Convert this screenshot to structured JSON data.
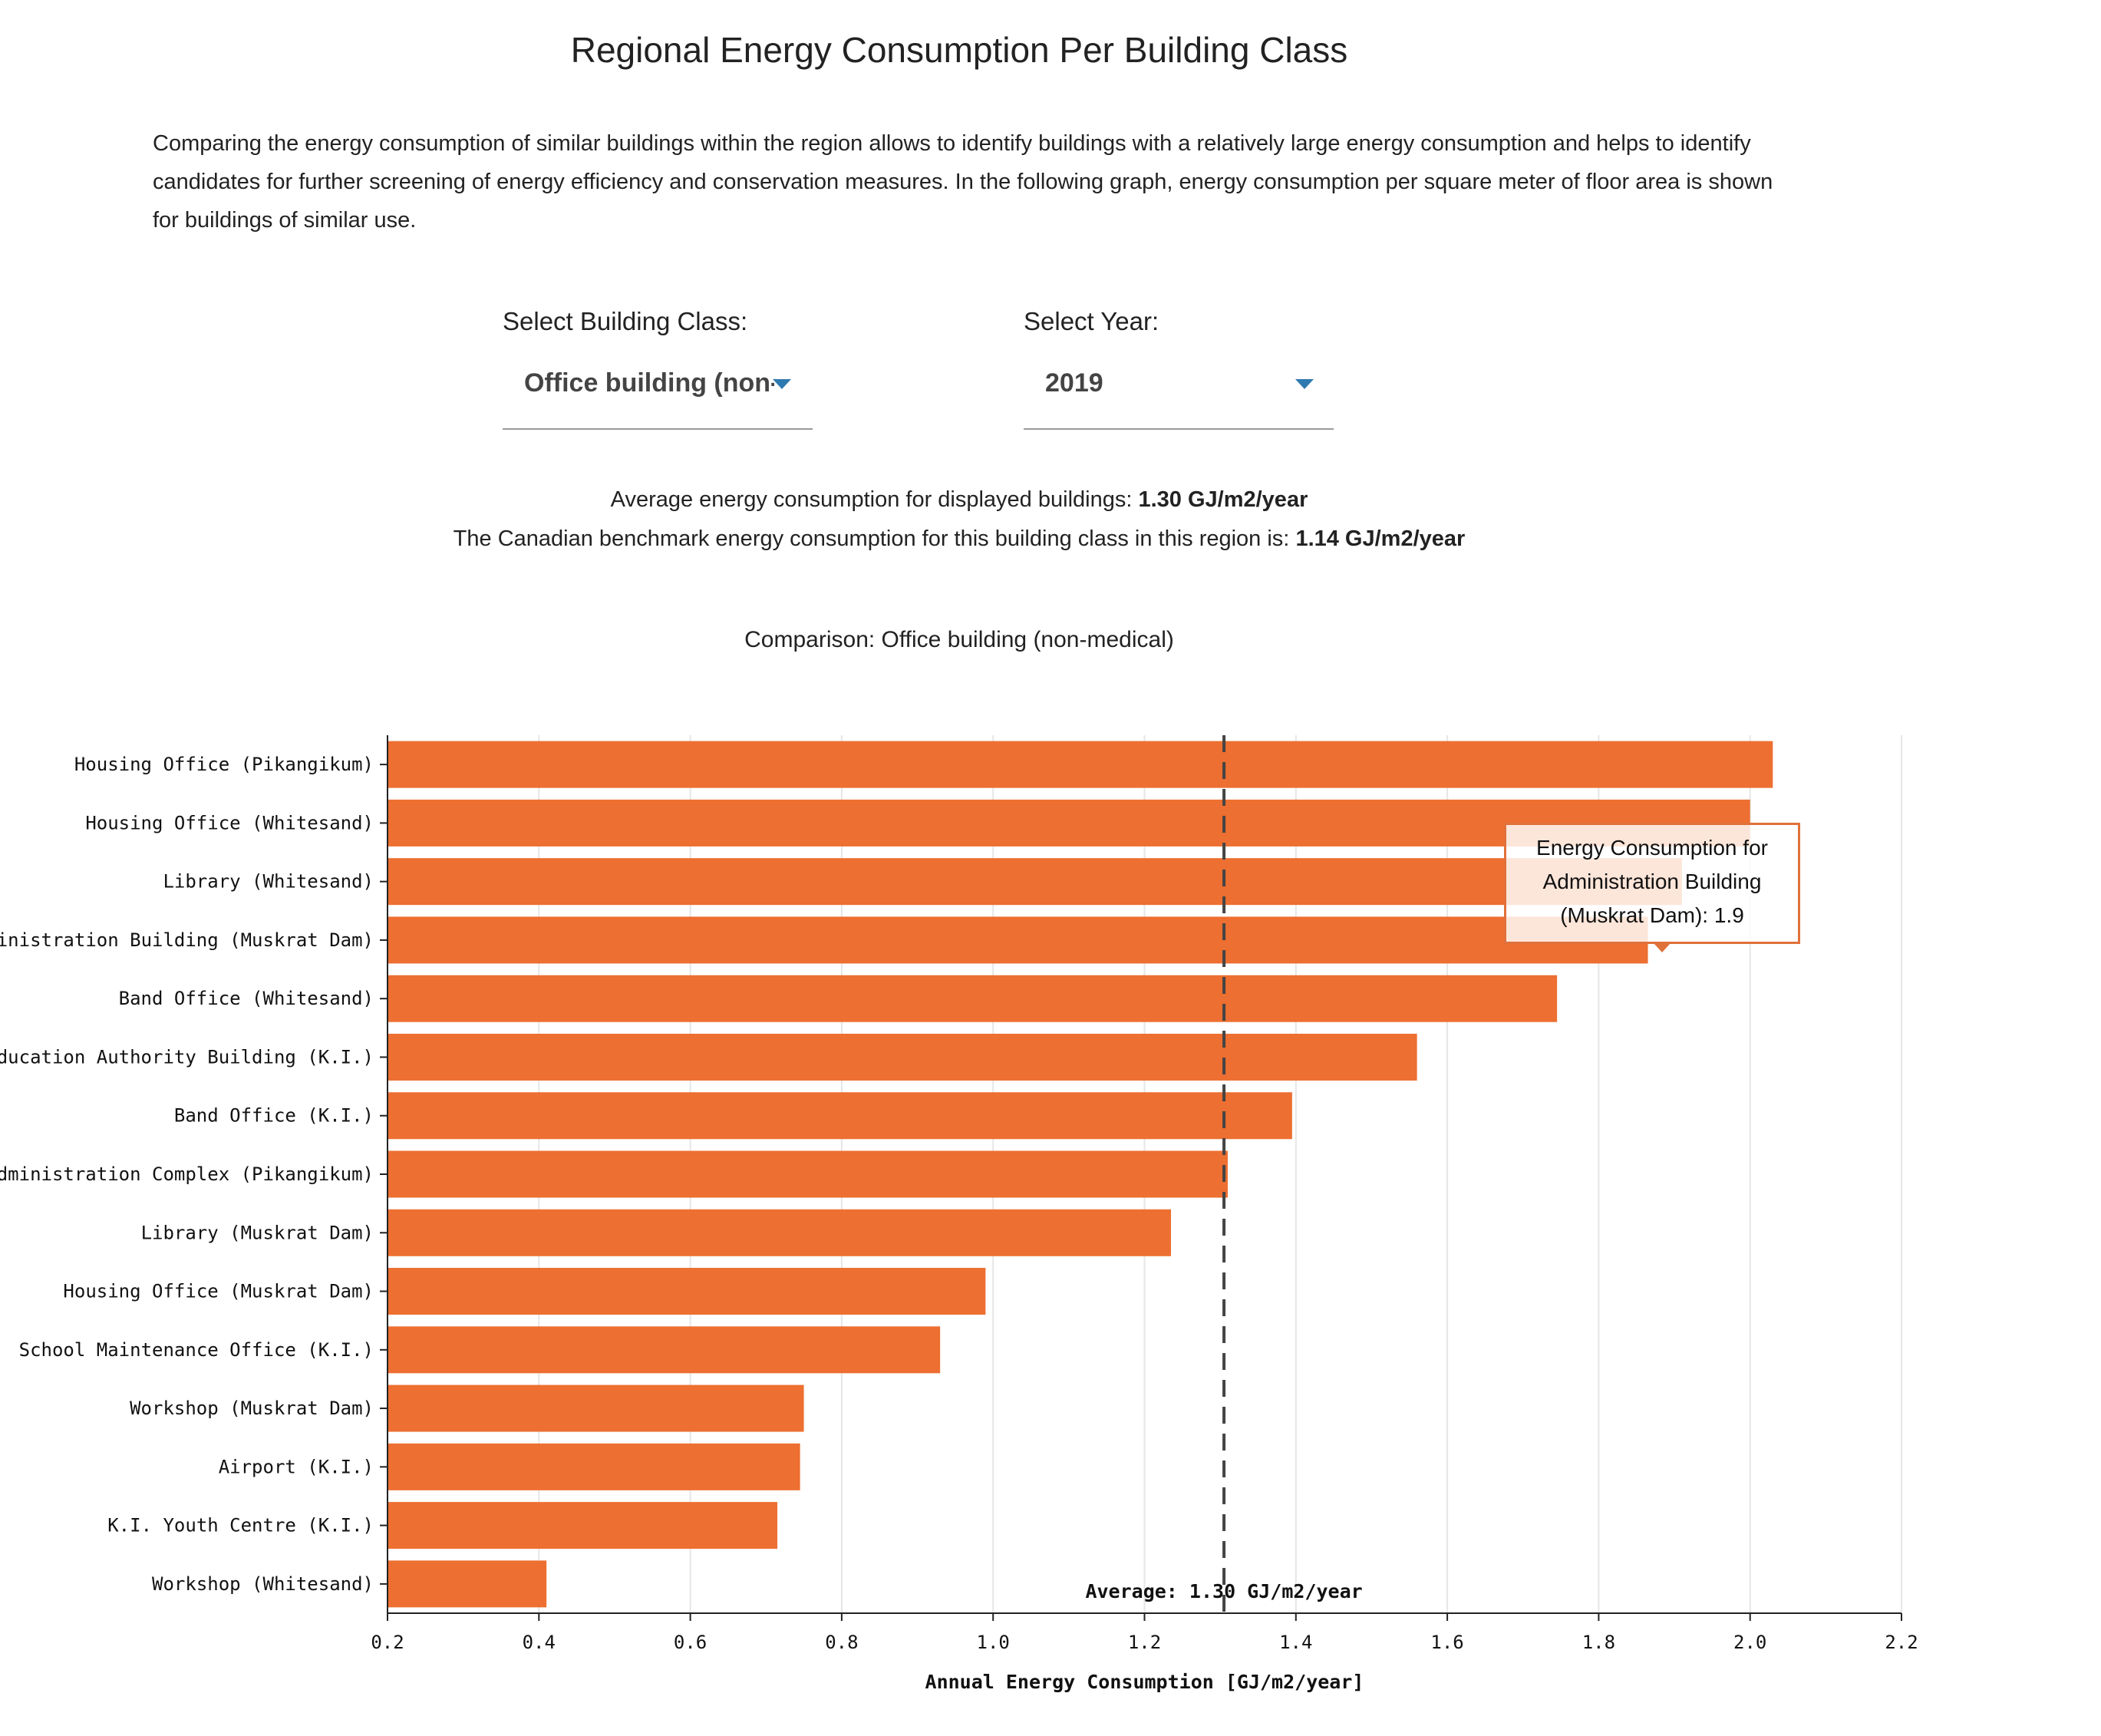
{
  "page": {
    "title": "Regional Energy Consumption Per Building Class",
    "intro": "Comparing the energy consumption of similar buildings within the region allows to identify buildings with a relatively large energy consumption and helps to identify candidates for further screening of energy efficiency and conservation measures. In the following graph, energy consumption per square meter of floor area is shown for buildings of similar use."
  },
  "controls": {
    "building_class": {
      "label": "Select Building Class:",
      "value": "Office building (non-medical)"
    },
    "year": {
      "label": "Select Year:",
      "value": "2019"
    }
  },
  "stats": {
    "average_text": "Average energy consumption for displayed buildings: ",
    "average_value": "1.30 GJ/m2/year",
    "benchmark_text": "The Canadian benchmark energy consumption for this building class in this region is: ",
    "benchmark_value": "1.14 GJ/m2/year"
  },
  "chart_data": {
    "type": "bar",
    "orientation": "horizontal",
    "title": "Comparison: Office building (non-medical)",
    "xlabel": "Annual Energy Consumption [GJ/m2/year]",
    "ylabel": "",
    "xlim": [
      0.2,
      2.2
    ],
    "xticks": [
      0.2,
      0.4,
      0.6,
      0.8,
      1.0,
      1.2,
      1.4,
      1.6,
      1.8,
      2.0,
      2.2
    ],
    "xtick_labels": [
      "0.2",
      "0.4",
      "0.6",
      "0.8",
      "1.0",
      "1.2",
      "1.4",
      "1.6",
      "1.8",
      "2.0",
      "2.2"
    ],
    "grid": true,
    "color": "#ed6f31",
    "categories": [
      "Housing Office (Pikangikum)",
      "Housing Office (Whitesand)",
      "Library (Whitesand)",
      "Administration Building (Muskrat Dam)",
      "Band Office (Whitesand)",
      "Education Authority Building (K.I.)",
      "Band Office (K.I.)",
      "Administration Complex (Pikangikum)",
      "Library (Muskrat Dam)",
      "Housing Office (Muskrat Dam)",
      "School Maintenance Office (K.I.)",
      "Workshop (Muskrat Dam)",
      "Airport (K.I.)",
      "K.I. Youth Centre (K.I.)",
      "Workshop (Whitesand)"
    ],
    "values": [
      2.03,
      2.0,
      1.91,
      1.865,
      1.745,
      1.56,
      1.395,
      1.31,
      1.235,
      0.99,
      0.93,
      0.75,
      0.745,
      0.715,
      0.41
    ],
    "average_line": {
      "value": 1.305,
      "label": "Average: 1.30 GJ/m2/year",
      "color": "#444444"
    },
    "tooltip": {
      "category": "Administration Building (Muskrat Dam)",
      "lines": [
        "Energy Consumption for",
        "Administration Building",
        "(Muskrat Dam): 1.9"
      ]
    }
  }
}
